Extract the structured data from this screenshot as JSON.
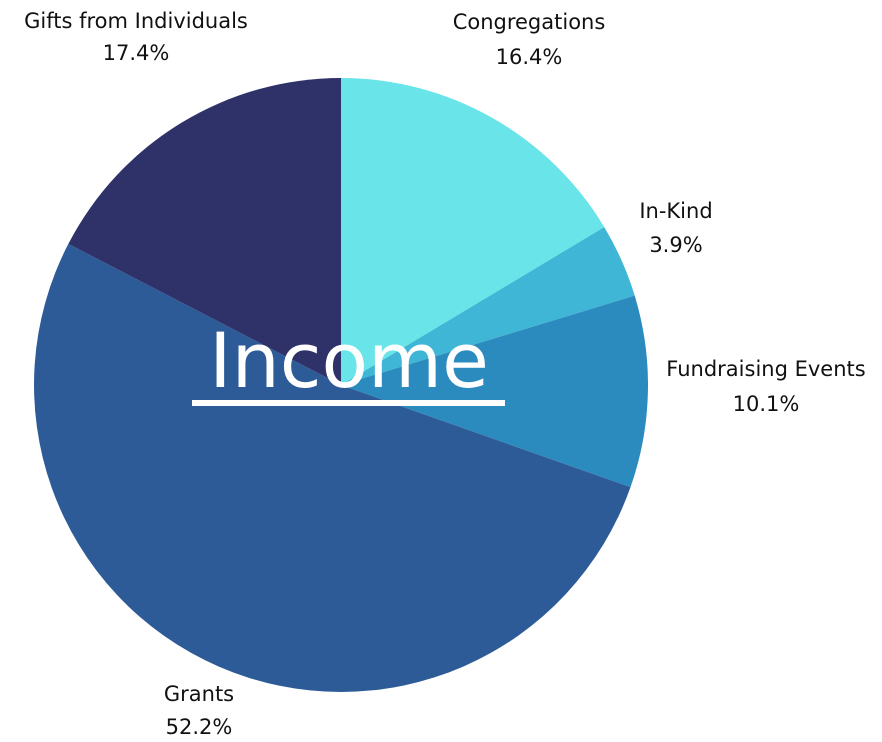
{
  "chart_data": {
    "type": "pie",
    "title": "Income",
    "slices": [
      {
        "label": "Congregations",
        "value": 16.4,
        "value_label": "16.4%",
        "color": "#69E4E9"
      },
      {
        "label": "In-Kind",
        "value": 3.9,
        "value_label": "3.9%",
        "color": "#3FB6D6"
      },
      {
        "label": "Fundraising Events",
        "value": 10.1,
        "value_label": "10.1%",
        "color": "#2C8BBE"
      },
      {
        "label": "Grants",
        "value": 52.2,
        "value_label": "52.2%",
        "color": "#2D5B98"
      },
      {
        "label": "Gifts from Individuals",
        "value": 17.4,
        "value_label": "17.4%",
        "color": "#2F3268"
      }
    ],
    "start": "12 o'clock",
    "direction": "clockwise",
    "legend": "none"
  }
}
